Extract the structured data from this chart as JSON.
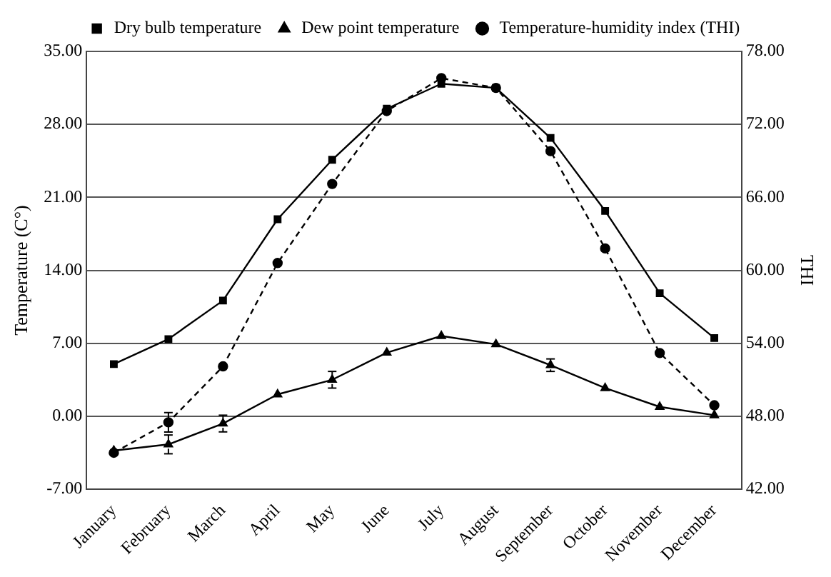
{
  "chart_data": {
    "type": "line",
    "ylabel": "Temperature (C°)",
    "y2label": "THI",
    "legend": "top",
    "grid": "y",
    "categories": [
      "January",
      "February",
      "March",
      "April",
      "May",
      "June",
      "July",
      "August",
      "September",
      "October",
      "November",
      "December"
    ],
    "ylim": [
      -7,
      35
    ],
    "yticks": [
      {
        "value": -7,
        "label": "-7.00"
      },
      {
        "value": 0,
        "label": "0.00"
      },
      {
        "value": 7,
        "label": "7.00"
      },
      {
        "value": 14,
        "label": "14.00"
      },
      {
        "value": 21,
        "label": "21.00"
      },
      {
        "value": 28,
        "label": "28.00"
      },
      {
        "value": 35,
        "label": "35.00"
      }
    ],
    "y2lim": [
      42,
      78
    ],
    "y2ticks": [
      {
        "value": 42,
        "label": "42.00"
      },
      {
        "value": 48,
        "label": "48.00"
      },
      {
        "value": 54,
        "label": "54.00"
      },
      {
        "value": 60,
        "label": "60.00"
      },
      {
        "value": 66,
        "label": "66.00"
      },
      {
        "value": 72,
        "label": "72.00"
      },
      {
        "value": 78,
        "label": "78.00"
      }
    ],
    "series": [
      {
        "name": "Dry bulb temperature",
        "color": "#000000",
        "marker": "square",
        "line_style": "solid",
        "values": [
          5.0,
          7.4,
          11.1,
          18.9,
          24.6,
          29.5,
          31.9,
          31.5,
          26.7,
          19.7,
          11.8,
          7.5
        ]
      },
      {
        "name": "Dew point temperature",
        "color": "#000000",
        "marker": "triangle",
        "line_style": "solid",
        "values": [
          -3.3,
          -2.7,
          -0.7,
          2.1,
          3.5,
          6.1,
          7.7,
          6.9,
          4.9,
          2.7,
          0.9,
          0.1
        ],
        "errors": [
          null,
          0.9,
          0.8,
          null,
          0.8,
          null,
          null,
          null,
          0.6,
          null,
          null,
          null
        ]
      },
      {
        "name": "Temperature-humidity index (THI)",
        "color": "#000000",
        "marker": "circle",
        "line_style": "dashed",
        "axis": "y2",
        "values": [
          45.0,
          47.5,
          52.1,
          60.6,
          67.1,
          73.1,
          75.8,
          75.0,
          69.8,
          61.8,
          53.2,
          48.9
        ],
        "errors": [
          null,
          0.8,
          null,
          null,
          null,
          null,
          null,
          null,
          null,
          null,
          null,
          null
        ]
      }
    ]
  }
}
